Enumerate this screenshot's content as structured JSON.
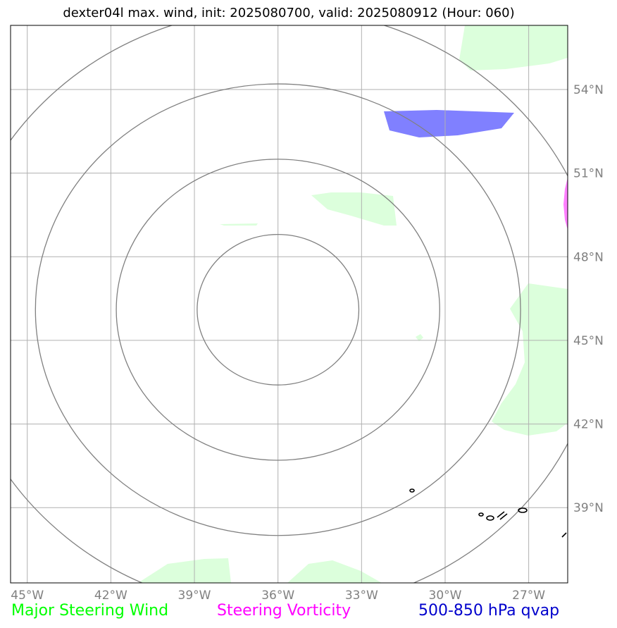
{
  "title": "dexter04l max. wind, init: 2025080700, valid: 2025080912 (Hour: 060)",
  "map": {
    "lon_range": [
      -45.6,
      -25.6
    ],
    "lat_range": [
      36.3,
      56.3
    ],
    "lon_ticks": [
      -45,
      -42,
      -39,
      -36,
      -33,
      -30,
      -27
    ],
    "lon_tick_labels": [
      "45°W",
      "42°W",
      "39°W",
      "36°W",
      "33°W",
      "30°W",
      "27°W"
    ],
    "lat_ticks": [
      39,
      42,
      45,
      48,
      51,
      54
    ],
    "lat_tick_labels": [
      "39°N",
      "42°N",
      "45°N",
      "48°N",
      "51°N",
      "54°N"
    ],
    "grid": true,
    "tick_label_color": "#808080",
    "range_rings": {
      "center": [
        -36.0,
        46.1
      ],
      "color": "#808080",
      "radii_deg_lat": [
        2.7,
        5.4,
        8.1,
        10.8
      ]
    },
    "layers": {
      "major_steering_wind_color": "#dcffdc",
      "steering_vorticity_color": "#ff80ff",
      "qvap_color": "#8080ff"
    }
  },
  "legend": [
    {
      "label": "Major Steering Wind",
      "color": "#00ff00"
    },
    {
      "label": "Steering Vorticity",
      "color": "#ff00ff"
    },
    {
      "label": "500-850 hPa qvap",
      "color": "#0000cc"
    }
  ]
}
